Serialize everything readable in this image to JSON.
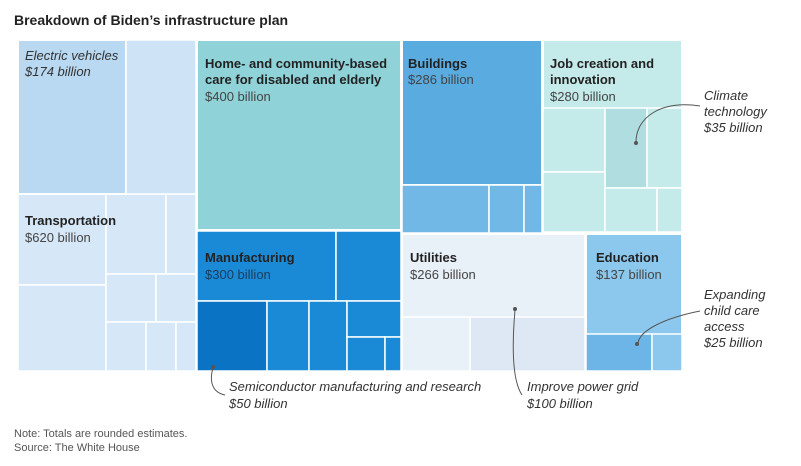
{
  "title": "Breakdown of Biden’s infrastructure plan",
  "chart_data": {
    "type": "treemap",
    "series": [
      {
        "name": "Transportation",
        "value": 620,
        "label": "$620 billion",
        "children": [
          {
            "name": "Electric vehicles",
            "value": 174,
            "label": "$174 billion"
          }
        ]
      },
      {
        "name": "Home- and community-based care for disabled and elderly",
        "value": 400,
        "label": "$400 billion"
      },
      {
        "name": "Manufacturing",
        "value": 300,
        "label": "$300 billion",
        "children": [
          {
            "name": "Semiconductor manufacturing and research",
            "value": 50,
            "label": "$50 billion"
          }
        ]
      },
      {
        "name": "Buildings",
        "value": 286,
        "label": "$286 billion"
      },
      {
        "name": "Job creation and innovation",
        "value": 280,
        "label": "$280 billion",
        "children": [
          {
            "name": "Climate technology",
            "value": 35,
            "label": "$35 billion"
          }
        ]
      },
      {
        "name": "Utilities",
        "value": 266,
        "label": "$266 billion",
        "children": [
          {
            "name": "Improve power grid",
            "value": 100,
            "label": "$100 billion"
          }
        ]
      },
      {
        "name": "Education",
        "value": 137,
        "label": "$137 billion",
        "children": [
          {
            "name": "Expanding child care access",
            "value": 25,
            "label": "$25 billion"
          }
        ]
      }
    ],
    "colors": {
      "transportation": "#cfe3f6",
      "electric_vehicles": "#b9d8f1",
      "care": "#8fd2d8",
      "manufacturing": "#1a8ad6",
      "semiconductor": "#0a73c4",
      "buildings": "#5aabe0",
      "jobs": "#c5eaea",
      "climate": "#afdde0",
      "utilities": "#e8f0f8",
      "power_grid": "#dde8f4",
      "education": "#8cc8ee",
      "child_care": "#6cb5e6"
    }
  },
  "labels": {
    "electric_vehicles": {
      "name": "Electric vehicles",
      "value": "$174 billion"
    },
    "transportation": {
      "name": "Transportation",
      "value": "$620 billion"
    },
    "care": {
      "name1": "Home- and community-based",
      "name2": "care for disabled and elderly",
      "value": "$400 billion"
    },
    "buildings": {
      "name": "Buildings",
      "value": "$286 billion"
    },
    "jobs": {
      "name1": "Job creation and",
      "name2": "innovation",
      "value": "$280 billion"
    },
    "manufacturing": {
      "name": "Manufacturing",
      "value": "$300 billion"
    },
    "utilities": {
      "name": "Utilities",
      "value": "$266 billion"
    },
    "education": {
      "name": "Education",
      "value": "$137 billion"
    }
  },
  "annotations": {
    "climate": {
      "line1": "Climate",
      "line2": "technology",
      "line3": "$35 billion"
    },
    "child_care": {
      "line1": "Expanding",
      "line2": "child care",
      "line3": "access",
      "line4": "$25 billion"
    },
    "semiconductor": {
      "line1": "Semiconductor manufacturing and research",
      "line2": "$50 billion"
    },
    "power_grid": {
      "line1": "Improve power grid",
      "line2": "$100 billion"
    }
  },
  "footer": {
    "note": "Note: Totals are rounded estimates.",
    "source": "Source: The White House"
  }
}
